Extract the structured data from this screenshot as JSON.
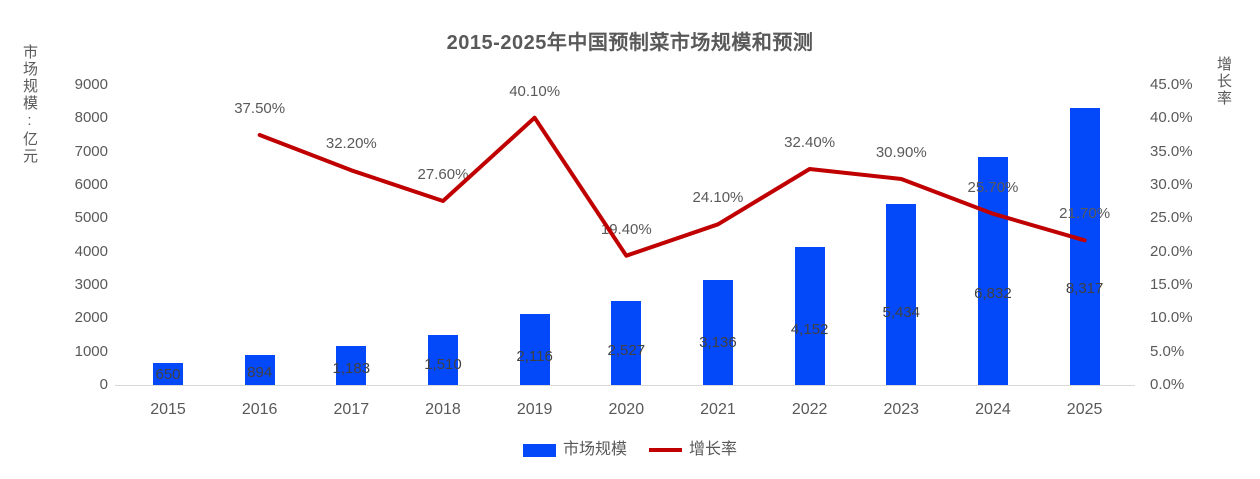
{
  "chart_data": {
    "type": "combo",
    "title": "2015-2025年中国预制菜市场规模和预测",
    "categories": [
      "2015",
      "2016",
      "2017",
      "2018",
      "2019",
      "2020",
      "2021",
      "2022",
      "2023",
      "2024",
      "2025"
    ],
    "series": [
      {
        "name": "市场规模",
        "type": "bar",
        "axis": "left",
        "values": [
          650,
          894,
          1183,
          1510,
          2116,
          2527,
          3136,
          4152,
          5434,
          6832,
          8317
        ],
        "labels": [
          "650",
          "894",
          "1,183",
          "1,510",
          "2,116",
          "2,527",
          "3,136",
          "4,152",
          "5,434",
          "6,832",
          "8,317"
        ]
      },
      {
        "name": "增长率",
        "type": "line",
        "axis": "right",
        "values": [
          null,
          37.5,
          32.2,
          27.6,
          40.1,
          19.4,
          24.1,
          32.4,
          30.9,
          25.7,
          21.7
        ],
        "labels": [
          null,
          "37.50%",
          "32.20%",
          "27.60%",
          "40.10%",
          "19.40%",
          "24.10%",
          "32.40%",
          "30.90%",
          "25.70%",
          "21.70%"
        ]
      }
    ],
    "left_axis": {
      "title": "市场规模:亿元",
      "min": 0,
      "max": 9000,
      "step": 1000,
      "ticks": [
        "0",
        "1000",
        "2000",
        "3000",
        "4000",
        "5000",
        "6000",
        "7000",
        "8000",
        "9000"
      ]
    },
    "right_axis": {
      "title": "增长率",
      "min": 0,
      "max": 45,
      "step": 5,
      "ticks": [
        "0.0%",
        "5.0%",
        "10.0%",
        "15.0%",
        "20.0%",
        "25.0%",
        "30.0%",
        "35.0%",
        "40.0%",
        "45.0%"
      ]
    },
    "legend": {
      "items": [
        {
          "label": "市场规模",
          "shape": "rect",
          "color": "#0349fa"
        },
        {
          "label": "增长率",
          "shape": "line",
          "color": "#c00000"
        }
      ],
      "position": "bottom-center"
    },
    "style": {
      "bar_color": "#0349fa",
      "line_color": "#c00000",
      "title_color": "#595959",
      "axis_text_color": "#595959",
      "bar_label_color": "#404040",
      "axis_line_color": "#d9d9d9",
      "grid": "off",
      "background": "#ffffff"
    }
  }
}
